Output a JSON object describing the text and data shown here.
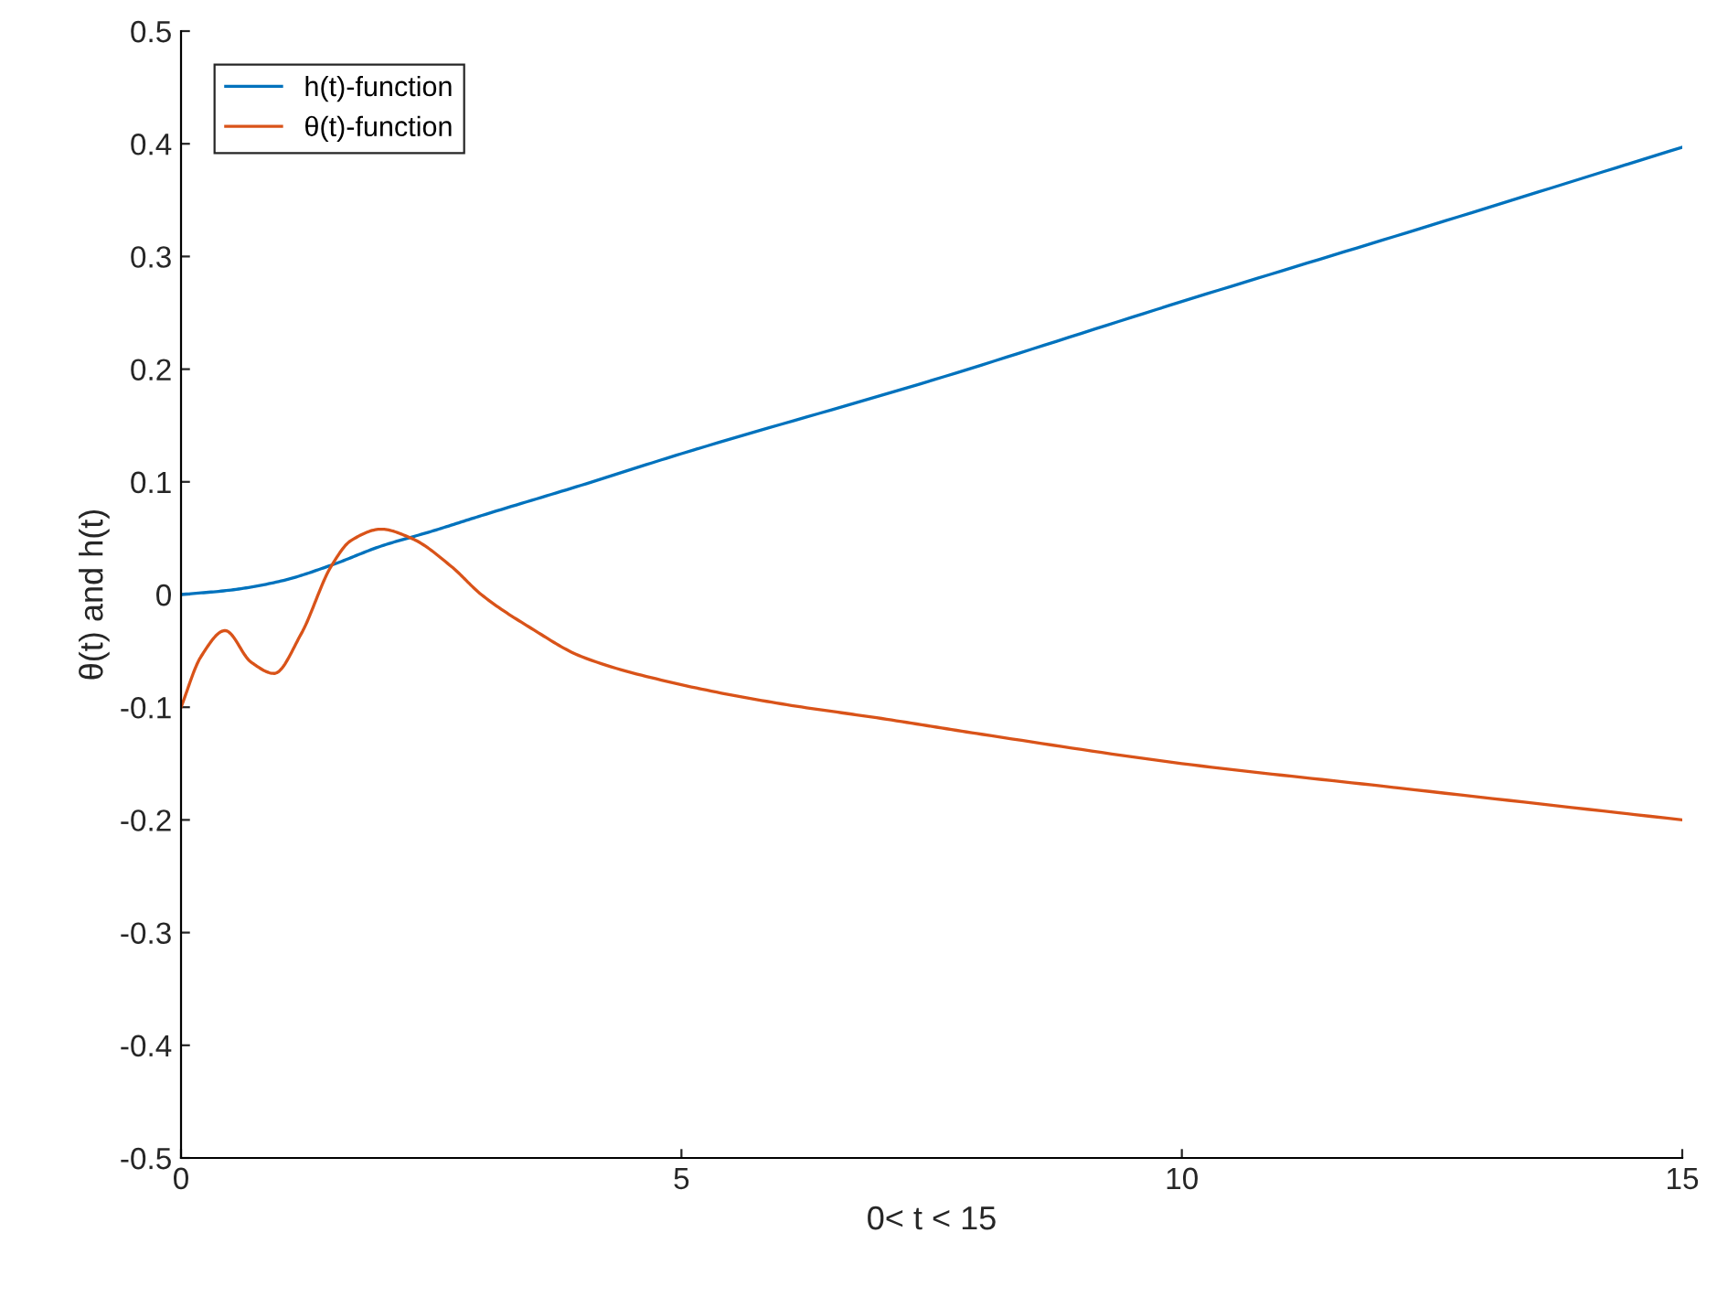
{
  "chart_data": {
    "type": "line",
    "xlabel": "0< t < 15",
    "ylabel": "θ(t) and h(t)",
    "xlim": [
      0,
      15
    ],
    "xticks": [
      0,
      5,
      10,
      15
    ],
    "ylim": [
      -0.5,
      0.5
    ],
    "yticks": [
      -0.5,
      -0.4,
      -0.3,
      -0.2,
      -0.1,
      0,
      0.1,
      0.2,
      0.3,
      0.4,
      0.5
    ],
    "grid": false,
    "legend": "top left",
    "marker": "none",
    "line_style": "solid",
    "series": [
      {
        "name": "h(t)-function",
        "color": "#0072bd",
        "x": [
          0,
          0.5,
          1,
          1.5,
          2,
          2.5,
          3,
          4,
          5,
          7.5,
          10,
          12.5,
          15
        ],
        "values": [
          0,
          0.004,
          0.012,
          0.026,
          0.043,
          0.056,
          0.07,
          0.097,
          0.125,
          0.19,
          0.26,
          0.328,
          0.397
        ]
      },
      {
        "name": "θ(t)-function",
        "color": "#d95319",
        "x": [
          0,
          0.2,
          0.44,
          0.7,
          0.93,
          1.2,
          1.5,
          1.7,
          2.0,
          2.3,
          2.7,
          3.0,
          3.5,
          4,
          5,
          6,
          7,
          8,
          10,
          12,
          15
        ],
        "values": [
          -0.1,
          -0.055,
          -0.032,
          -0.06,
          -0.07,
          -0.035,
          0.025,
          0.048,
          0.058,
          0.05,
          0.025,
          0.0,
          -0.03,
          -0.055,
          -0.08,
          -0.097,
          -0.11,
          -0.124,
          -0.15,
          -0.17,
          -0.2
        ]
      }
    ]
  }
}
